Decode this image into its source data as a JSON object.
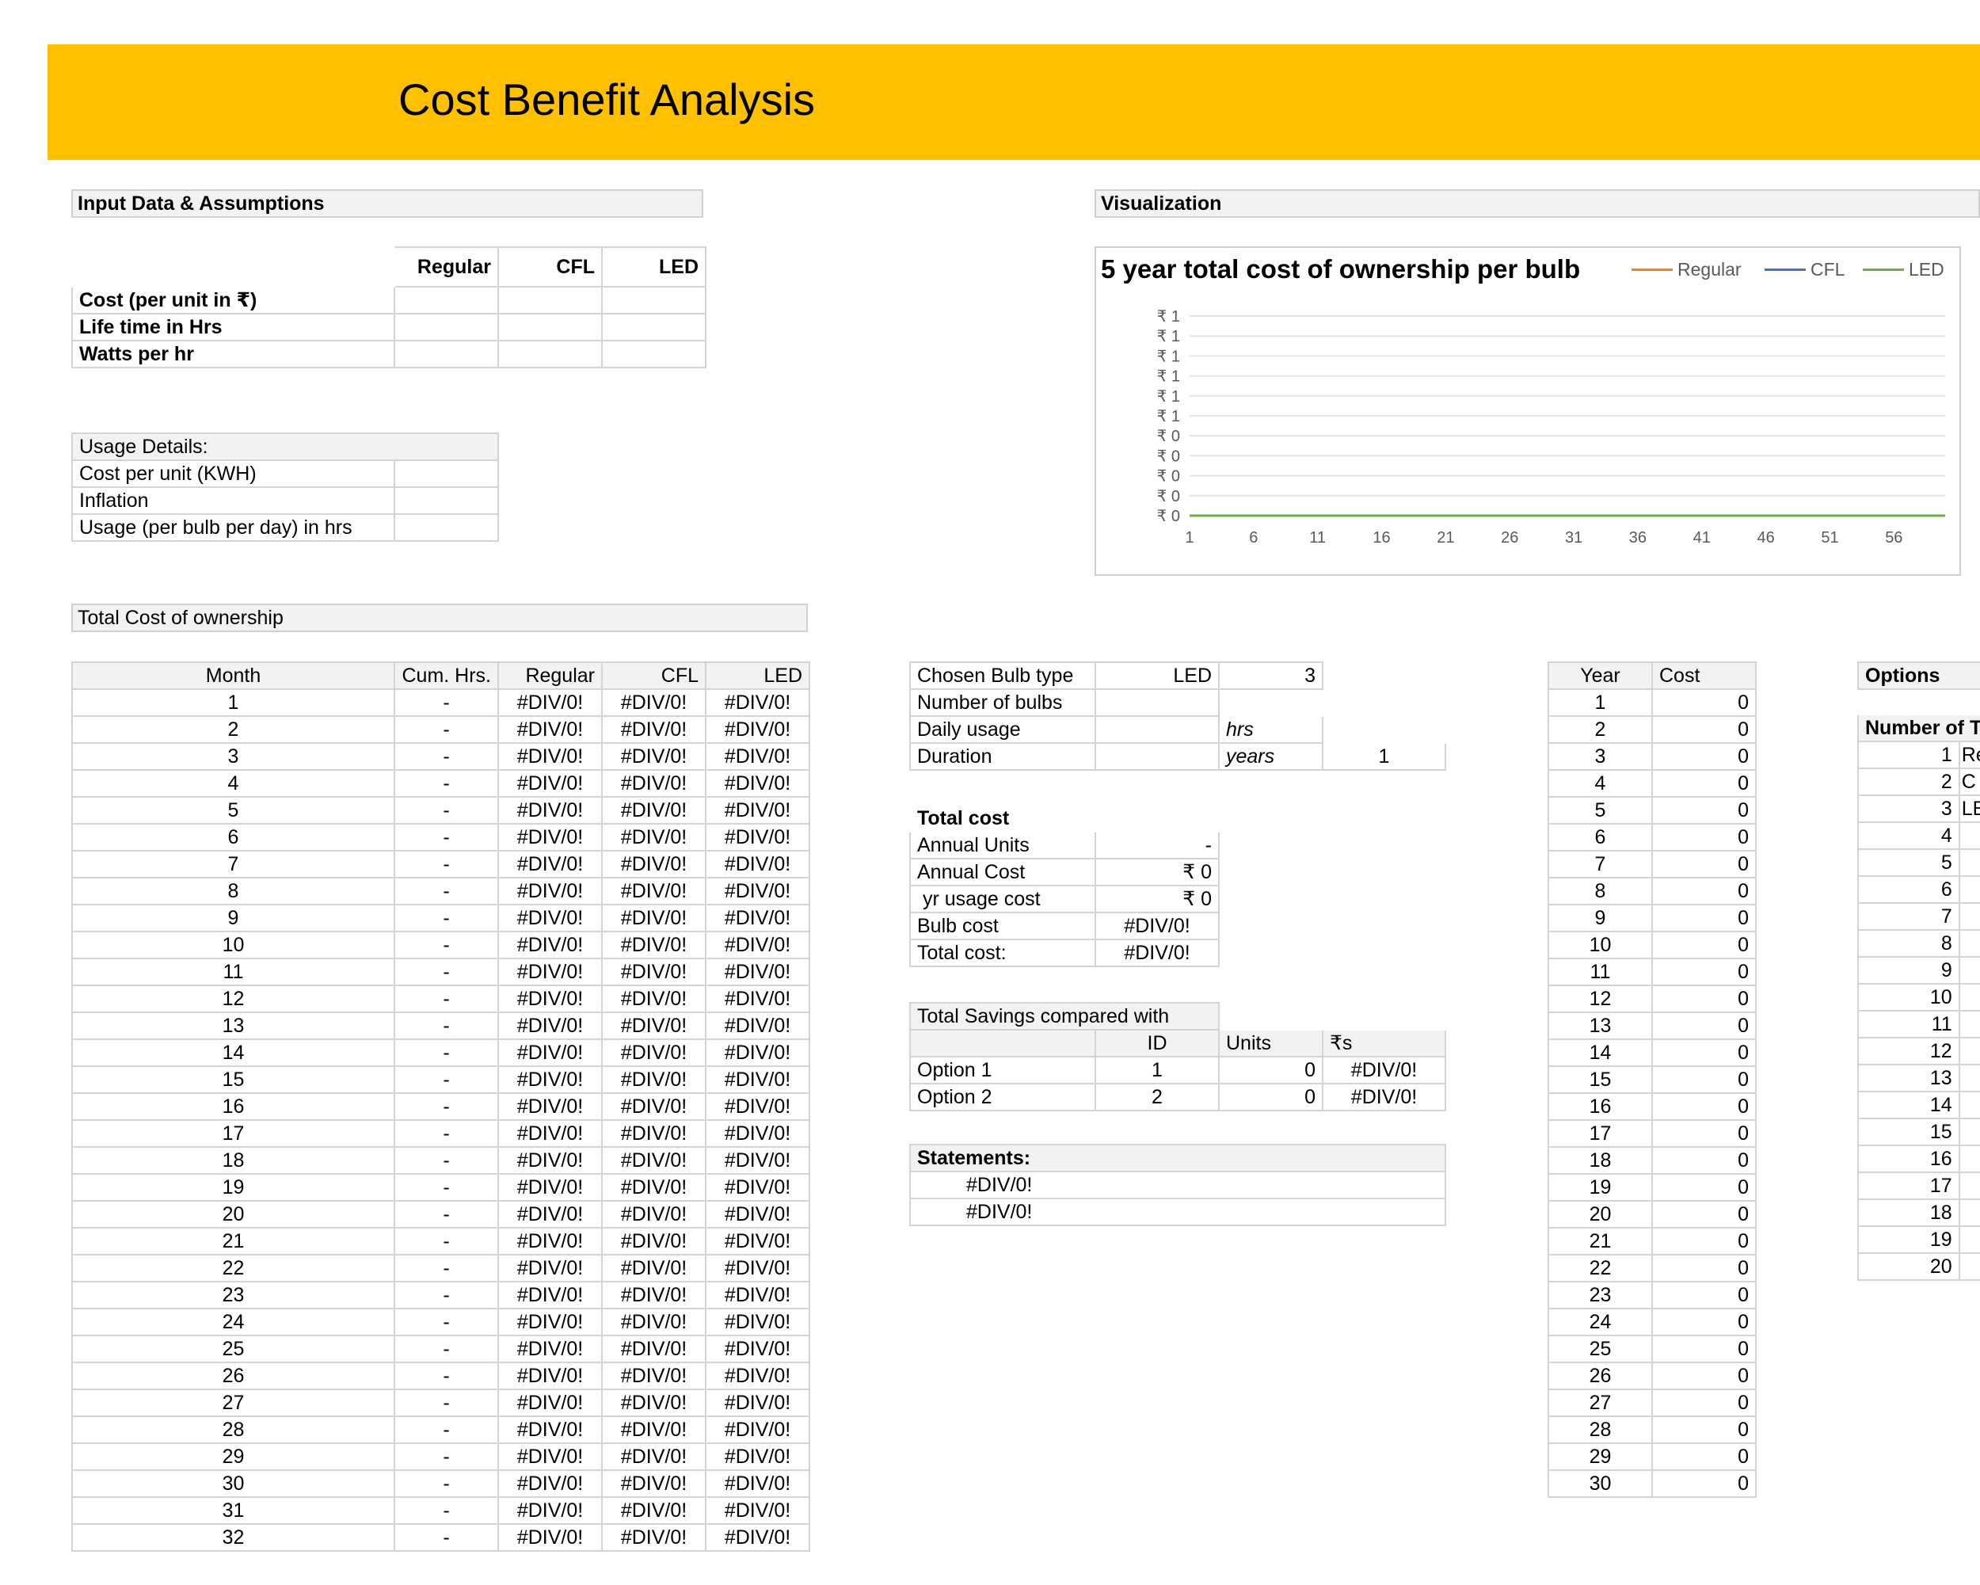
{
  "page": {
    "title": "Cost Benefit Analysis"
  },
  "input_section": {
    "header": "Input Data & Assumptions",
    "columns": [
      "Regular",
      "CFL",
      "LED"
    ],
    "rows": [
      "Cost (per unit in ₹)",
      "Life time in Hrs",
      "Watts per hr"
    ]
  },
  "usage_section": {
    "header": "Usage Details:",
    "rows": [
      "Cost per unit (KWH)",
      "Inflation",
      "Usage (per bulb per day) in hrs"
    ]
  },
  "visualization": {
    "header": "Visualization",
    "chart_title": "5 year total cost of ownership per bulb"
  },
  "chart_data": {
    "type": "line",
    "title": "5 year total cost of ownership per bulb",
    "x_tick_labels": [
      "1",
      "6",
      "11",
      "16",
      "21",
      "26",
      "31",
      "36",
      "41",
      "46",
      "51",
      "56"
    ],
    "x_range": [
      1,
      60
    ],
    "y_tick_labels": [
      "₹ 1",
      "₹ 1",
      "₹ 1",
      "₹ 1",
      "₹ 1",
      "₹ 1",
      "₹ 0",
      "₹ 0",
      "₹ 0",
      "₹ 0",
      "₹ 0"
    ],
    "y_range": [
      0,
      1
    ],
    "grid": true,
    "legend_position": "top-right",
    "series": [
      {
        "name": "Regular",
        "color": "#ED7D31",
        "y": 0
      },
      {
        "name": "CFL",
        "color": "#4472C4",
        "y": 0
      },
      {
        "name": "LED",
        "color": "#70AD47",
        "y": 0
      }
    ]
  },
  "tco": {
    "header": "Total Cost of ownership",
    "columns": [
      "Month",
      "Cum. Hrs.",
      "Regular",
      "CFL",
      "LED"
    ],
    "months": [
      "1",
      "2",
      "3",
      "4",
      "5",
      "6",
      "7",
      "8",
      "9",
      "10",
      "11",
      "12",
      "13",
      "14",
      "15",
      "16",
      "17",
      "18",
      "19",
      "20",
      "21",
      "22",
      "23",
      "24",
      "25",
      "26",
      "27",
      "28",
      "29",
      "30",
      "31",
      "32"
    ],
    "cum_hrs_value": "-",
    "cost_value": "#DIV/0!"
  },
  "chosen": {
    "bulb_type_label": "Chosen Bulb type",
    "bulb_type_value": "LED",
    "bulb_type_id": "3",
    "num_bulbs_label": "Number of bulbs",
    "daily_usage_label": "Daily usage",
    "daily_usage_unit": "hrs",
    "duration_label": "Duration",
    "duration_unit": "years",
    "duration_value": "1"
  },
  "total_cost": {
    "header": "Total cost",
    "rows": [
      {
        "label": "Annual Units",
        "value": "-"
      },
      {
        "label": "Annual Cost",
        "value": "₹ 0"
      },
      {
        "label": " yr usage cost",
        "value": "₹ 0"
      },
      {
        "label": "Bulb cost",
        "value": "#DIV/0!"
      },
      {
        "label": "Total cost:",
        "value": "#DIV/0!"
      }
    ]
  },
  "savings": {
    "header": "Total Savings compared with",
    "columns": [
      "ID",
      "Units",
      "₹s"
    ],
    "rows": [
      {
        "label": "Option 1",
        "id": "1",
        "units": "0",
        "rs": "#DIV/0!"
      },
      {
        "label": "Option 2",
        "id": "2",
        "units": "0",
        "rs": "#DIV/0!"
      }
    ]
  },
  "statements": {
    "header": "Statements:",
    "rows": [
      "#DIV/0!",
      "#DIV/0!"
    ]
  },
  "year_table": {
    "columns": [
      "Year",
      "Cost"
    ],
    "years": [
      "1",
      "2",
      "3",
      "4",
      "5",
      "6",
      "7",
      "8",
      "9",
      "10",
      "11",
      "12",
      "13",
      "14",
      "15",
      "16",
      "17",
      "18",
      "19",
      "20",
      "21",
      "22",
      "23",
      "24",
      "25",
      "26",
      "27",
      "28",
      "29",
      "30"
    ],
    "cost_value": "0"
  },
  "options_table": {
    "header": "Options",
    "subheader": "Number of Ty",
    "items": [
      {
        "num": "1",
        "label": "Re"
      },
      {
        "num": "2",
        "label": "C"
      },
      {
        "num": "3",
        "label": "LE"
      },
      {
        "num": "4",
        "label": ""
      },
      {
        "num": "5",
        "label": ""
      },
      {
        "num": "6",
        "label": ""
      },
      {
        "num": "7",
        "label": ""
      },
      {
        "num": "8",
        "label": ""
      },
      {
        "num": "9",
        "label": ""
      },
      {
        "num": "10",
        "label": ""
      },
      {
        "num": "11",
        "label": ""
      },
      {
        "num": "12",
        "label": ""
      },
      {
        "num": "13",
        "label": ""
      },
      {
        "num": "14",
        "label": ""
      },
      {
        "num": "15",
        "label": ""
      },
      {
        "num": "16",
        "label": ""
      },
      {
        "num": "17",
        "label": ""
      },
      {
        "num": "18",
        "label": ""
      },
      {
        "num": "19",
        "label": ""
      },
      {
        "num": "20",
        "label": ""
      }
    ]
  }
}
